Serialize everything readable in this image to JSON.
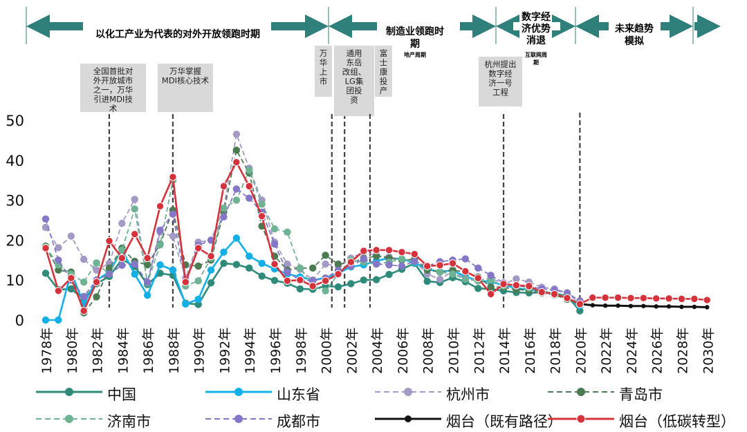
{
  "chart_data": {
    "type": "line",
    "ylim": [
      0,
      50
    ],
    "yticks": [
      "0",
      "10",
      "20",
      "30",
      "40",
      "50"
    ],
    "xlim": [
      1978,
      2030
    ],
    "xticks": [
      "1978年",
      "1980年",
      "1982年",
      "1984年",
      "1986年",
      "1988年",
      "1990年",
      "1992年",
      "1994年",
      "1996年",
      "1998年",
      "2000年",
      "2002年",
      "2004年",
      "2006年",
      "2008年",
      "2010年",
      "2012年",
      "2014年",
      "2016年",
      "2018年",
      "2020年",
      "2022年",
      "2024年",
      "2026年",
      "2028年",
      "2030年"
    ],
    "phases": [
      {
        "text": "以化工产业为代表的对外开放领跑时期",
        "sub": ""
      },
      {
        "text": "制造业领跑时期",
        "sub": "地产周期"
      },
      {
        "text": "数字经济优势消退",
        "sub": "互联网周期"
      },
      {
        "text": "未来趋势模拟",
        "sub": ""
      }
    ],
    "annotations": [
      {
        "year": 1983,
        "text": "全国首批对外开放城市之一，万华引进MDI技术"
      },
      {
        "year": 1988,
        "text": "万华掌握MDI核心技术"
      },
      {
        "year": 2000.5,
        "text": "万华上市"
      },
      {
        "year": 2001.5,
        "text": "通用东岳改组、LG集团投资"
      },
      {
        "year": 2003.5,
        "text": "富士康投产"
      },
      {
        "year": 2014,
        "text": "杭州提出数字经济一号工程"
      },
      {
        "year": 2020,
        "text": ""
      }
    ],
    "series": [
      {
        "name": "中国",
        "color": "#2e8b7a",
        "style": "solid",
        "start": 1978,
        "values": [
          11.7,
          7.6,
          7.8,
          5.2,
          9.1,
          10.9,
          15.2,
          13.4,
          8.9,
          11.7,
          11.2,
          4.2,
          3.9,
          9.3,
          14.2,
          13.9,
          13.0,
          11.0,
          9.9,
          9.2,
          7.8,
          7.7,
          8.5,
          8.3,
          9.1,
          10.0,
          10.1,
          11.4,
          12.7,
          14.2,
          9.7,
          9.4,
          10.6,
          9.6,
          7.9,
          7.8,
          7.3,
          6.9,
          6.8,
          6.9,
          6.7,
          6.0,
          2.3
        ]
      },
      {
        "name": "山东省",
        "color": "#13b0e8",
        "style": "solid",
        "start": 1978,
        "values": [
          0.0,
          0.0,
          12.0,
          4.0,
          10.0,
          12.0,
          17.5,
          11.5,
          6.2,
          13.8,
          12.5,
          4.0,
          5.2,
          12.5,
          17.0,
          20.5,
          16.0,
          14.2,
          12.8,
          11.5,
          10.8,
          10.0,
          10.5,
          11.7,
          13.3,
          13.8,
          14.8,
          15.5,
          15.3,
          14.3,
          12.7,
          12.1,
          12.4,
          10.9,
          9.8,
          9.6,
          8.7,
          8.0,
          7.6,
          7.4,
          6.4,
          5.5,
          3.6
        ]
      },
      {
        "name": "杭州市",
        "color": "#a59ac6",
        "style": "dash",
        "start": 1978,
        "values": [
          23.2,
          18.1,
          21.0,
          15.2,
          12.5,
          14.2,
          24.2,
          30.2,
          9.3,
          22.0,
          21.0,
          10.5,
          19.5,
          20.0,
          28.0,
          46.5,
          38.0,
          30.0,
          19.5,
          14.0,
          12.7,
          10.0,
          14.0,
          13.5,
          15.5,
          17.0,
          16.2,
          15.8,
          15.2,
          14.8,
          11.5,
          10.2,
          12.2,
          10.3,
          10.0,
          10.5,
          9.0,
          10.3,
          9.5,
          8.2,
          7.8,
          6.8,
          4.0
        ]
      },
      {
        "name": "青岛市",
        "color": "#4b7a53",
        "style": "dash",
        "start": 1978,
        "values": [
          18.5,
          12.5,
          12.0,
          1.8,
          5.8,
          13.0,
          18.0,
          14.7,
          13.8,
          19.0,
          27.5,
          13.8,
          13.5,
          15.0,
          27.0,
          42.5,
          36.8,
          23.5,
          16.0,
          12.5,
          13.0,
          13.0,
          16.2,
          14.0,
          14.3,
          15.5,
          16.0,
          15.5,
          15.0,
          15.2,
          12.5,
          12.0,
          12.5,
          12.0,
          10.8,
          8.3,
          8.2,
          7.6,
          7.5,
          6.8,
          6.3,
          5.2,
          3.9
        ]
      },
      {
        "name": "济南市",
        "color": "#6fb394",
        "style": "dash",
        "start": 1978,
        "values": [
          18.3,
          13.8,
          11.5,
          9.5,
          14.3,
          11.5,
          17.5,
          27.8,
          9.3,
          18.8,
          35.0,
          8.5,
          9.8,
          15.5,
          28.0,
          30.0,
          37.5,
          29.0,
          22.8,
          22.0,
          13.0,
          8.5,
          7.3,
          11.5,
          15.0,
          14.5,
          14.0,
          14.5,
          15.3,
          14.6,
          13.3,
          12.0,
          11.5,
          10.2,
          9.8,
          10.0,
          8.5,
          8.8,
          8.0,
          7.2,
          6.6,
          5.8,
          4.2
        ]
      },
      {
        "name": "成都市",
        "color": "#8676c8",
        "style": "dash",
        "start": 1978,
        "values": [
          25.3,
          15.0,
          10.0,
          5.9,
          10.0,
          11.5,
          13.7,
          14.0,
          9.5,
          22.5,
          26.5,
          9.5,
          18.7,
          20.0,
          25.8,
          32.8,
          30.5,
          27.0,
          19.0,
          12.0,
          10.0,
          9.8,
          10.5,
          12.4,
          13.5,
          15.3,
          14.0,
          13.8,
          13.5,
          14.7,
          13.5,
          14.6,
          15.0,
          15.3,
          13.0,
          11.2,
          9.3,
          8.5,
          8.4,
          7.8,
          7.5,
          6.8,
          4.8
        ]
      },
      {
        "name": "烟台（既有路径）",
        "color": "#111111",
        "style": "solid-marker",
        "start": 2020,
        "values": [
          4.0,
          3.7,
          3.6,
          3.6,
          3.5,
          3.5,
          3.4,
          3.4,
          3.3,
          3.3,
          3.2
        ]
      },
      {
        "name": "烟台（低碳转型）",
        "color": "#d6323c",
        "style": "solid",
        "start": 1978,
        "values": [
          18.0,
          7.3,
          10.5,
          2.3,
          9.5,
          19.8,
          15.5,
          21.5,
          15.5,
          28.5,
          35.8,
          9.5,
          18.0,
          16.0,
          33.5,
          39.5,
          33.5,
          26.0,
          14.0,
          9.8,
          10.0,
          8.5,
          9.8,
          11.5,
          14.5,
          17.3,
          17.5,
          17.5,
          17.0,
          16.5,
          13.5,
          13.7,
          14.2,
          12.2,
          10.5,
          6.5,
          9.0,
          8.7,
          8.5,
          7.0,
          6.5,
          5.5,
          4.0,
          5.6,
          5.6,
          5.6,
          5.5,
          5.5,
          5.4,
          5.4,
          5.3,
          5.3,
          5.0
        ]
      }
    ]
  }
}
